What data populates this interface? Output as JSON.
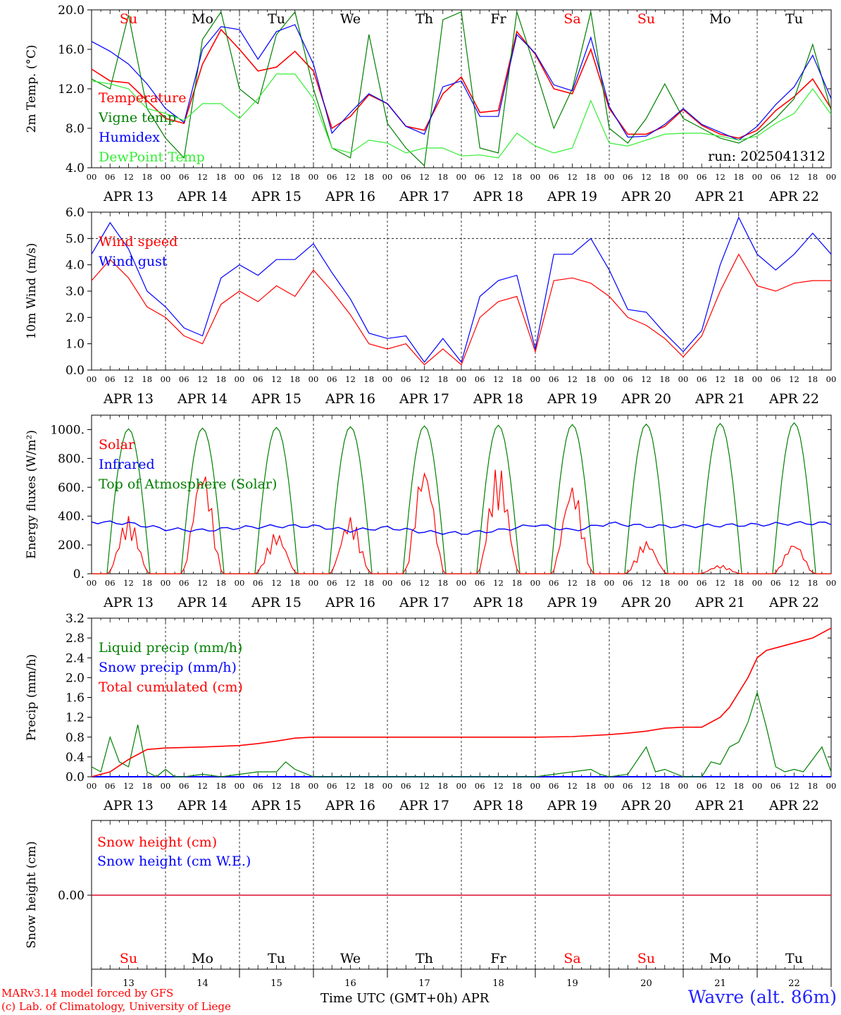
{
  "chart_data": [
    {
      "type": "line",
      "ylabel": "2m Temp. (°C)",
      "ylim": [
        4,
        20
      ],
      "yticks": [
        4.0,
        8.0,
        12.0,
        16.0,
        20.0
      ],
      "ytick_labels": [
        "4.0",
        "8.0",
        "12.0",
        "16.0",
        "20.0"
      ],
      "annotation": "run: 2025041312",
      "day_labels": [
        "Su",
        "Mo",
        "Tu",
        "We",
        "Th",
        "Fr",
        "Sa",
        "Su",
        "Mo",
        "Tu"
      ],
      "legend": [
        "Temperature",
        "Vigne temp",
        "Humidex",
        "DewPoint Temp"
      ],
      "series": [
        {
          "name": "Temperature",
          "color": "#ff0000",
          "x": [
            0,
            6,
            12,
            18,
            24,
            30,
            36,
            42,
            48,
            54,
            60,
            66,
            72,
            78,
            84,
            90,
            96,
            102,
            108,
            114,
            120,
            126,
            132,
            138,
            144,
            150,
            156,
            162,
            168,
            174,
            180,
            186,
            192,
            198,
            204,
            210,
            216,
            222,
            228,
            234,
            240
          ],
          "y": [
            14.0,
            12.8,
            12.6,
            10.8,
            9.0,
            8.5,
            14.5,
            18.0,
            16.0,
            13.8,
            14.2,
            15.8,
            13.8,
            8.0,
            9.2,
            11.4,
            10.5,
            8.2,
            7.8,
            11.5,
            13.2,
            9.6,
            9.8,
            17.8,
            15.5,
            12.0,
            11.5,
            16.0,
            10.0,
            7.4,
            7.4,
            8.2,
            9.9,
            8.3,
            7.4,
            7.0,
            7.8,
            9.8,
            11.2,
            13.0,
            10.0
          ]
        },
        {
          "name": "Vigne temp",
          "color": "#008000",
          "x": [
            0,
            6,
            12,
            18,
            24,
            30,
            36,
            42,
            48,
            54,
            60,
            66,
            72,
            78,
            84,
            90,
            96,
            102,
            108,
            114,
            120,
            126,
            132,
            138,
            144,
            150,
            156,
            162,
            168,
            174,
            180,
            186,
            192,
            198,
            204,
            210,
            216,
            222,
            228,
            234,
            240
          ],
          "y": [
            13.0,
            12.0,
            19.5,
            10.0,
            7.0,
            5.0,
            17.0,
            19.8,
            12.0,
            10.5,
            17.5,
            19.8,
            12.0,
            6.0,
            5.0,
            17.5,
            8.5,
            6.0,
            4.2,
            19.0,
            19.8,
            6.0,
            5.5,
            19.8,
            14.0,
            8.0,
            12.0,
            19.8,
            8.0,
            6.5,
            9.0,
            12.5,
            9.0,
            8.0,
            7.0,
            6.5,
            7.5,
            9.0,
            11.0,
            16.5,
            9.8
          ]
        },
        {
          "name": "Humidex",
          "color": "#0000ff",
          "x": [
            0,
            6,
            12,
            18,
            24,
            30,
            36,
            42,
            48,
            54,
            60,
            66,
            72,
            78,
            84,
            90,
            96,
            102,
            108,
            114,
            120,
            126,
            132,
            138,
            144,
            150,
            156,
            162,
            168,
            174,
            180,
            186,
            192,
            198,
            204,
            210,
            216,
            222,
            228,
            234,
            240
          ],
          "y": [
            16.8,
            15.8,
            14.5,
            12.5,
            10.0,
            8.6,
            16.0,
            18.3,
            18.0,
            15.0,
            17.8,
            18.5,
            14.5,
            7.5,
            9.6,
            11.5,
            10.5,
            8.2,
            7.4,
            12.2,
            12.8,
            9.2,
            9.2,
            17.5,
            15.6,
            12.4,
            11.8,
            17.2,
            10.2,
            7.1,
            7.2,
            8.4,
            10.0,
            8.4,
            7.6,
            6.8,
            8.2,
            10.4,
            12.2,
            15.4,
            11.0
          ]
        },
        {
          "name": "DewPoint Temp",
          "color": "#33ee33",
          "x": [
            0,
            6,
            12,
            18,
            24,
            30,
            36,
            42,
            48,
            54,
            60,
            66,
            72,
            78,
            84,
            90,
            96,
            102,
            108,
            114,
            120,
            126,
            132,
            138,
            144,
            150,
            156,
            162,
            168,
            174,
            180,
            186,
            192,
            198,
            204,
            210,
            216,
            222,
            228,
            234,
            240
          ],
          "y": [
            12.8,
            12.5,
            12.0,
            10.0,
            9.5,
            8.8,
            10.5,
            10.5,
            9.0,
            11.0,
            13.5,
            13.5,
            11.0,
            6.0,
            5.5,
            6.8,
            6.5,
            5.5,
            6.0,
            6.0,
            5.2,
            5.3,
            5.0,
            7.5,
            6.2,
            5.5,
            6.0,
            10.8,
            6.5,
            6.2,
            6.8,
            7.4,
            7.5,
            7.5,
            7.2,
            6.8,
            7.2,
            8.5,
            9.5,
            12.0,
            9.4
          ]
        }
      ]
    },
    {
      "type": "line",
      "ylabel": "10m Wind (m/s)",
      "ylim": [
        0,
        6
      ],
      "yticks": [
        0.0,
        1.0,
        2.0,
        3.0,
        4.0,
        5.0,
        6.0
      ],
      "ytick_labels": [
        "0.0",
        "1.0",
        "2.0",
        "3.0",
        "4.0",
        "5.0",
        "6.0"
      ],
      "reference_line": 5.0,
      "legend": [
        "Wind speed",
        "Wind gust"
      ],
      "series": [
        {
          "name": "Wind speed",
          "color": "#ff0000",
          "x": [
            0,
            6,
            12,
            18,
            24,
            30,
            36,
            42,
            48,
            54,
            60,
            66,
            72,
            78,
            84,
            90,
            96,
            102,
            108,
            114,
            120,
            126,
            132,
            138,
            144,
            150,
            156,
            162,
            168,
            174,
            180,
            186,
            192,
            198,
            204,
            210,
            216,
            222,
            228,
            234,
            240
          ],
          "y": [
            3.4,
            4.2,
            3.5,
            2.4,
            2.0,
            1.3,
            1.0,
            2.5,
            3.0,
            2.6,
            3.2,
            2.8,
            3.8,
            3.0,
            2.1,
            1.0,
            0.8,
            1.0,
            0.2,
            0.8,
            0.2,
            2.0,
            2.6,
            2.8,
            0.7,
            3.4,
            3.5,
            3.3,
            2.8,
            2.0,
            1.7,
            1.2,
            0.5,
            1.3,
            3.0,
            4.4,
            3.2,
            3.0,
            3.3,
            3.4,
            3.4
          ]
        },
        {
          "name": "Wind gust",
          "color": "#0000ff",
          "x": [
            0,
            6,
            12,
            18,
            24,
            30,
            36,
            42,
            48,
            54,
            60,
            66,
            72,
            78,
            84,
            90,
            96,
            102,
            108,
            114,
            120,
            126,
            132,
            138,
            144,
            150,
            156,
            162,
            168,
            174,
            180,
            186,
            192,
            198,
            204,
            210,
            216,
            222,
            228,
            234,
            240
          ],
          "y": [
            4.4,
            5.6,
            4.6,
            3.0,
            2.4,
            1.6,
            1.3,
            3.5,
            4.0,
            3.6,
            4.2,
            4.2,
            4.8,
            3.7,
            2.7,
            1.4,
            1.2,
            1.3,
            0.3,
            1.2,
            0.3,
            2.8,
            3.4,
            3.6,
            0.8,
            4.4,
            4.4,
            5.0,
            3.8,
            2.3,
            2.2,
            1.4,
            0.7,
            1.5,
            4.0,
            5.8,
            4.4,
            3.8,
            4.4,
            5.2,
            4.4
          ]
        }
      ]
    },
    {
      "type": "line",
      "ylabel": "Energy fluxes (W/m²)",
      "ylim": [
        0,
        1100
      ],
      "yticks": [
        0,
        200,
        400,
        600,
        800,
        1000
      ],
      "ytick_labels": [
        "0.",
        "200.",
        "400.",
        "600.",
        "800.",
        "1000."
      ],
      "legend": [
        "Solar",
        "Infrared",
        "Top of Atmosphere (Solar)"
      ],
      "toa_daily_max": [
        1005,
        1010,
        1015,
        1020,
        1025,
        1030,
        1035,
        1038,
        1042,
        1046
      ],
      "solar_daily_max": [
        400,
        750,
        290,
        400,
        770,
        760,
        640,
        230,
        60,
        220
      ],
      "series": [
        {
          "name": "Solar",
          "color": "#ff0000"
        },
        {
          "name": "Infrared",
          "color": "#0000ff",
          "x": [
            0,
            12,
            24,
            36,
            48,
            60,
            72,
            84,
            96,
            108,
            120,
            132,
            144,
            156,
            168,
            180,
            192,
            204,
            216,
            228,
            240
          ],
          "y": [
            360,
            350,
            310,
            300,
            320,
            330,
            330,
            300,
            320,
            290,
            280,
            300,
            340,
            300,
            350,
            330,
            330,
            335,
            340,
            350,
            350
          ]
        },
        {
          "name": "Top of Atmosphere (Solar)",
          "color": "#008000"
        }
      ]
    },
    {
      "type": "line",
      "ylabel": "Precip (mm/h)",
      "ylim": [
        0,
        3.2
      ],
      "yticks": [
        0.0,
        0.4,
        0.8,
        1.2,
        1.6,
        2.0,
        2.4,
        2.8,
        3.2
      ],
      "ytick_labels": [
        "0.0",
        "0.4",
        "0.8",
        "1.2",
        "1.6",
        "2.0",
        "2.4",
        "2.8",
        "3.2"
      ],
      "legend": [
        "Liquid precip (mm/h)",
        "Snow precip (mm/h)",
        "Total cumulated (cm)"
      ],
      "series": [
        {
          "name": "Liquid precip (mm/h)",
          "color": "#008000",
          "x": [
            0,
            3,
            6,
            9,
            12,
            15,
            18,
            21,
            24,
            27,
            30,
            36,
            42,
            48,
            54,
            60,
            63,
            66,
            72,
            78,
            84,
            96,
            120,
            144,
            162,
            165,
            168,
            174,
            180,
            183,
            186,
            192,
            198,
            201,
            204,
            207,
            210,
            213,
            216,
            219,
            222,
            225,
            228,
            231,
            234,
            237,
            240
          ],
          "y": [
            0.2,
            0.1,
            0.8,
            0.3,
            0.2,
            1.05,
            0.1,
            0.0,
            0.15,
            0.0,
            0.0,
            0.05,
            0.0,
            0.05,
            0.1,
            0.1,
            0.3,
            0.15,
            0.0,
            0.0,
            0.0,
            0.0,
            0.0,
            0.0,
            0.15,
            0.05,
            0.0,
            0.05,
            0.6,
            0.1,
            0.15,
            0.0,
            0.0,
            0.3,
            0.25,
            0.6,
            0.7,
            1.1,
            1.7,
            1.0,
            0.2,
            0.1,
            0.15,
            0.1,
            0.35,
            0.6,
            0.1
          ]
        },
        {
          "name": "Snow precip (mm/h)",
          "color": "#0000ff",
          "x": [
            0,
            240
          ],
          "y": [
            0,
            0
          ]
        },
        {
          "name": "Total cumulated (cm)",
          "color": "#ff0000",
          "x": [
            0,
            6,
            12,
            18,
            24,
            36,
            48,
            54,
            60,
            66,
            72,
            96,
            120,
            144,
            156,
            168,
            174,
            180,
            186,
            192,
            198,
            204,
            207,
            210,
            213,
            216,
            219,
            222,
            228,
            234,
            240
          ],
          "y": [
            0.0,
            0.1,
            0.35,
            0.55,
            0.58,
            0.6,
            0.63,
            0.67,
            0.72,
            0.78,
            0.8,
            0.8,
            0.8,
            0.8,
            0.81,
            0.85,
            0.88,
            0.92,
            0.98,
            1.0,
            1.0,
            1.2,
            1.4,
            1.7,
            2.0,
            2.4,
            2.55,
            2.6,
            2.7,
            2.8,
            3.0
          ]
        }
      ]
    },
    {
      "type": "line",
      "ylabel": "Snow height (cm)",
      "yticks": [
        0.0
      ],
      "ytick_labels": [
        "0.00"
      ],
      "legend": [
        "Snow height (cm)",
        "Snow height (cm W.E.)"
      ],
      "series": [
        {
          "name": "Snow height (cm)",
          "color": "#ff0000",
          "x": [
            0,
            240
          ],
          "y": [
            0,
            0
          ]
        },
        {
          "name": "Snow height (cm W.E.)",
          "color": "#0000ff",
          "x": [
            0,
            240
          ],
          "y": [
            0,
            0
          ]
        }
      ],
      "day_labels": [
        "Su",
        "Mo",
        "Tu",
        "We",
        "Th",
        "Fr",
        "Sa",
        "Su",
        "Mo",
        "Tu"
      ],
      "day_numbers": [
        "13",
        "14",
        "15",
        "16",
        "17",
        "18",
        "19",
        "20",
        "21",
        "22"
      ]
    }
  ],
  "hour_tick_labels": [
    "00",
    "06",
    "12",
    "18"
  ],
  "final_hour_label": "00",
  "date_labels": [
    "APR 13",
    "APR 14",
    "APR 15",
    "APR 16",
    "APR 17",
    "APR 18",
    "APR 19",
    "APR 20",
    "APR 21",
    "APR 22"
  ],
  "weekend_color": "#ff0000",
  "weekday_color": "#000000",
  "weekend_days": [
    "Su",
    "Sa"
  ],
  "footer": {
    "model_line": "MARv3.14 model forced by GFS",
    "credit_line": "(c) Lab. of Climatology, University of Liege",
    "time_axis_label": "Time UTC (GMT+0h) APR",
    "station": "Wavre (alt. 86m)"
  }
}
